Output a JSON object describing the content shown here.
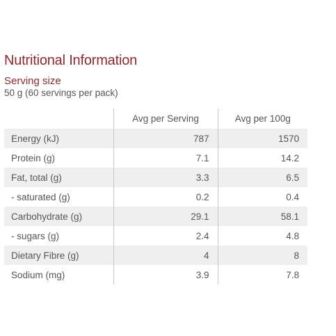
{
  "title": "Nutritional Information",
  "serving": {
    "label": "Serving size",
    "value": "50 g (60 servings per pack)"
  },
  "table": {
    "headers": [
      "",
      "Avg per Serving",
      "Avg per 100g"
    ],
    "rows": [
      {
        "name": "Energy (kJ)",
        "per_serving": "787",
        "per_100g": "1570"
      },
      {
        "name": "Protein (g)",
        "per_serving": "7.1",
        "per_100g": "14.2"
      },
      {
        "name": "Fat, total (g)",
        "per_serving": "3.3",
        "per_100g": "6.5"
      },
      {
        "name": "- saturated (g)",
        "per_serving": "0.2",
        "per_100g": "0.4"
      },
      {
        "name": "Carbohydrate (g)",
        "per_serving": "29.1",
        "per_100g": "58.1"
      },
      {
        "name": "- sugars (g)",
        "per_serving": "2.4",
        "per_100g": "4.8"
      },
      {
        "name": "Dietary Fibre (g)",
        "per_serving": "4",
        "per_100g": "8"
      },
      {
        "name": "Sodium (mg)",
        "per_serving": "3.9",
        "per_100g": "7.8"
      }
    ]
  },
  "colors": {
    "heading": "#8e2a2f",
    "text": "#555555",
    "row_stripe": "#efefef",
    "divider": "#c8c8c8"
  }
}
